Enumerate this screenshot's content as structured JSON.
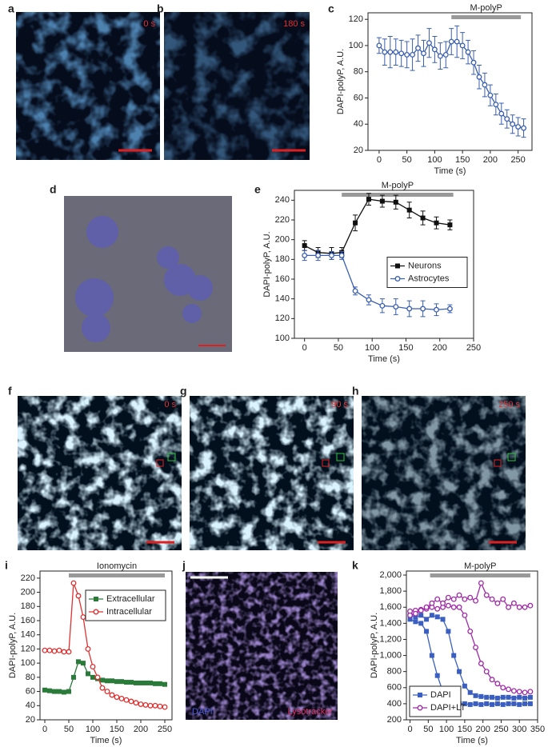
{
  "panels": [
    {
      "letter": "a",
      "label": "0 s"
    },
    {
      "letter": "b",
      "label": "180 s"
    },
    {
      "letter": "d"
    },
    {
      "letter": "f",
      "label": "0 s"
    },
    {
      "letter": "g",
      "label": "90 s"
    },
    {
      "letter": "h",
      "label": "250 s"
    },
    {
      "letter": "j",
      "label": "DAPI",
      "label2": "Lysotracker"
    }
  ],
  "chart_data": [
    {
      "type": "line",
      "panel_label": "c",
      "xlabel": "Time (s)",
      "ylabel": "DAPI-polyP, A.U.",
      "annotation": {
        "text": "M-polyP",
        "x": [
          130,
          255
        ]
      },
      "x": [
        0,
        10,
        20,
        30,
        40,
        50,
        60,
        70,
        80,
        90,
        100,
        110,
        120,
        130,
        140,
        150,
        160,
        170,
        180,
        190,
        200,
        210,
        220,
        230,
        240,
        250,
        260
      ],
      "series": [
        {
          "color": "#3a5fb0",
          "marker": "circle",
          "values": [
            100,
            95,
            95,
            95,
            94,
            93,
            93,
            98,
            94,
            102,
            97,
            92,
            93,
            103,
            103,
            100,
            95,
            87,
            76,
            70,
            62,
            55,
            48,
            44,
            40,
            38,
            37
          ],
          "errors": [
            6,
            10,
            12,
            10,
            10,
            10,
            12,
            10,
            10,
            11,
            10,
            10,
            10,
            10,
            12,
            10,
            9,
            9,
            9,
            9,
            8,
            8,
            8,
            7,
            7,
            7,
            7
          ]
        }
      ],
      "xlim": [
        -20,
        275
      ],
      "xticks": [
        0,
        50,
        100,
        150,
        200,
        250
      ],
      "ylim": [
        20,
        125
      ],
      "yticks": [
        20,
        40,
        60,
        80,
        100,
        120
      ]
    },
    {
      "type": "line",
      "panel_label": "e",
      "xlabel": "Time (s)",
      "ylabel": "DAPI-polyP, A.U.",
      "annotation": {
        "text": "M-polyP",
        "x": [
          55,
          220
        ]
      },
      "legend": "center right",
      "x": [
        0,
        20,
        40,
        55,
        75,
        95,
        115,
        135,
        155,
        175,
        195,
        215
      ],
      "series": [
        {
          "name": "Neurons",
          "color": "#111111",
          "marker": "square",
          "values": [
            194,
            187,
            186,
            187,
            217,
            241,
            239,
            238,
            230,
            222,
            217,
            215
          ],
          "errors": [
            5,
            5,
            6,
            5,
            8,
            6,
            6,
            7,
            8,
            7,
            6,
            5
          ]
        },
        {
          "name": "Astrocytes",
          "color": "#3a5fb0",
          "marker": "circle",
          "values": [
            184,
            184,
            184,
            184,
            148,
            139,
            133,
            132,
            130,
            130,
            129,
            130
          ],
          "errors": [
            5,
            5,
            4,
            4,
            4,
            5,
            7,
            8,
            8,
            8,
            6,
            4
          ]
        }
      ],
      "xlim": [
        -15,
        250
      ],
      "xticks": [
        0,
        50,
        100,
        150,
        200,
        250
      ],
      "ylim": [
        100,
        250
      ],
      "yticks": [
        100,
        120,
        140,
        160,
        180,
        200,
        220,
        240
      ]
    },
    {
      "type": "line",
      "panel_label": "i",
      "xlabel": "Time (s)",
      "ylabel": "DAPI-polyP, A.U.",
      "annotation": {
        "text": "Ionomycin",
        "x": [
          50,
          250
        ]
      },
      "legend": "upper right",
      "x": [
        0,
        10,
        20,
        30,
        40,
        50,
        60,
        70,
        80,
        90,
        100,
        110,
        120,
        130,
        140,
        150,
        160,
        170,
        180,
        190,
        200,
        210,
        220,
        230,
        240,
        250
      ],
      "series": [
        {
          "name": "Extracellular",
          "color": "#2a7a3a",
          "marker": "square",
          "values": [
            62,
            61,
            60,
            60,
            59,
            60,
            80,
            102,
            100,
            85,
            80,
            78,
            76,
            75,
            75,
            74,
            74,
            73,
            73,
            72,
            72,
            72,
            72,
            71,
            71,
            70
          ]
        },
        {
          "name": "Intracellular",
          "color": "#e03030",
          "marker": "circle",
          "values": [
            118,
            118,
            117,
            118,
            116,
            116,
            213,
            195,
            165,
            120,
            95,
            80,
            65,
            60,
            55,
            52,
            50,
            48,
            46,
            44,
            42,
            41,
            40,
            40,
            39,
            38
          ]
        }
      ],
      "xlim": [
        -10,
        265
      ],
      "xticks": [
        0,
        50,
        100,
        150,
        200,
        250
      ],
      "ylim": [
        20,
        230
      ],
      "yticks": [
        20,
        40,
        60,
        80,
        100,
        120,
        140,
        160,
        180,
        200,
        220
      ]
    },
    {
      "type": "line",
      "panel_label": "k",
      "xlabel": "Time (s)",
      "ylabel": "DAPI-polyP, A.U.",
      "annotation": {
        "text": "M-polyP",
        "x": [
          55,
          330
        ]
      },
      "legend": "lower left",
      "x": [
        0,
        15,
        30,
        45,
        60,
        75,
        90,
        105,
        120,
        135,
        150,
        165,
        180,
        195,
        210,
        225,
        240,
        255,
        270,
        285,
        300,
        315,
        330
      ],
      "series": [
        {
          "name": "DAPI",
          "color": "#3a5fc0",
          "marker": "square",
          "values": [
            1450,
            1420,
            1400,
            1300,
            1000,
            750,
            550,
            450,
            420,
            400,
            400,
            390,
            400,
            390,
            400,
            390,
            400,
            390,
            400,
            400,
            390,
            400,
            400
          ]
        },
        {
          "color": "#3a5fc0",
          "marker": "square",
          "values": [
            1500,
            1480,
            1500,
            1450,
            1500,
            1480,
            1450,
            1300,
            1000,
            800,
            620,
            540,
            500,
            490,
            480,
            480,
            470,
            480,
            480,
            470,
            480,
            470,
            480
          ]
        },
        {
          "name": "DAPI+LT",
          "color": "#a02aa8",
          "marker": "circle",
          "values": [
            1550,
            1560,
            1570,
            1580,
            1600,
            1580,
            1600,
            1620,
            1600,
            1600,
            1500,
            1300,
            1100,
            900,
            800,
            700,
            650,
            600,
            580,
            560,
            550,
            540,
            550
          ]
        },
        {
          "color": "#a02aa8",
          "marker": "circle",
          "values": [
            1500,
            1520,
            1560,
            1600,
            1650,
            1700,
            1650,
            1720,
            1700,
            1750,
            1700,
            1720,
            1680,
            1900,
            1750,
            1700,
            1650,
            1700,
            1600,
            1650,
            1600,
            1600,
            1620
          ]
        }
      ],
      "xlim": [
        -10,
        350
      ],
      "xticks": [
        0,
        50,
        100,
        150,
        200,
        250,
        300,
        350
      ],
      "ylim": [
        200,
        2050
      ],
      "yticks": [
        {
          "value": 200,
          "label": "200"
        },
        {
          "value": 400,
          "label": "400"
        },
        {
          "value": 600,
          "label": "600"
        },
        {
          "value": 800,
          "label": "800"
        },
        {
          "value": 1000,
          "label": "1,000"
        },
        {
          "value": 1200,
          "label": "1,200"
        },
        {
          "value": 1400,
          "label": "1,400"
        },
        {
          "value": 1600,
          "label": "1,600"
        },
        {
          "value": 1800,
          "label": "1,800"
        },
        {
          "value": 2000,
          "label": "2,000"
        }
      ]
    }
  ]
}
